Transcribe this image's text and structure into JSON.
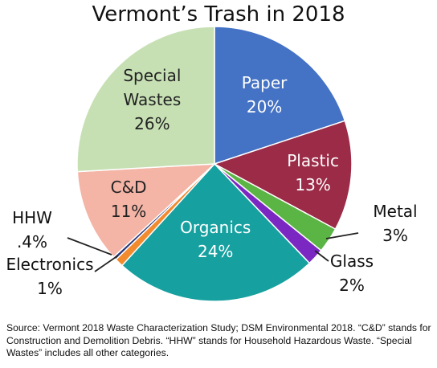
{
  "chart_data": {
    "type": "pie",
    "title": "Vermont’s Trash in 2018",
    "slices": [
      {
        "label": "Paper",
        "label_lines": [
          "Paper"
        ],
        "value": 20,
        "display": "20%",
        "color": "#4472C4"
      },
      {
        "label": "Plastic",
        "label_lines": [
          "Plastic"
        ],
        "value": 13,
        "display": "13%",
        "color": "#9B2B47"
      },
      {
        "label": "Metal",
        "label_lines": [
          "Metal"
        ],
        "value": 3,
        "display": "3%",
        "color": "#5BB544"
      },
      {
        "label": "Glass",
        "label_lines": [
          "Glass"
        ],
        "value": 2,
        "display": "2%",
        "color": "#7B28C2"
      },
      {
        "label": "Organics",
        "label_lines": [
          "Organics"
        ],
        "value": 24,
        "display": "24%",
        "color": "#17A0A0"
      },
      {
        "label": "Electronics",
        "label_lines": [
          "Electronics"
        ],
        "value": 1,
        "display": "1%",
        "color": "#F28A2E"
      },
      {
        "label": "HHW",
        "label_lines": [
          "HHW"
        ],
        "value": 0.4,
        "display": ".4%",
        "color": "#2F3B7A"
      },
      {
        "label": "C&D",
        "label_lines": [
          "C&D"
        ],
        "value": 11,
        "display": "11%",
        "color": "#F4B4A6"
      },
      {
        "label": "Special Wastes",
        "label_lines": [
          "Special",
          "Wastes"
        ],
        "value": 26,
        "display": "26%",
        "color": "#C6E0B4"
      }
    ]
  },
  "source_note": "Source: Vermont 2018 Waste Characterization Study; DSM Environmental 2018. “C&D” stands for Construction and Demolition Debris. “HHW” stands for Household Hazardous Waste. “Special Wastes” includes all other categories."
}
